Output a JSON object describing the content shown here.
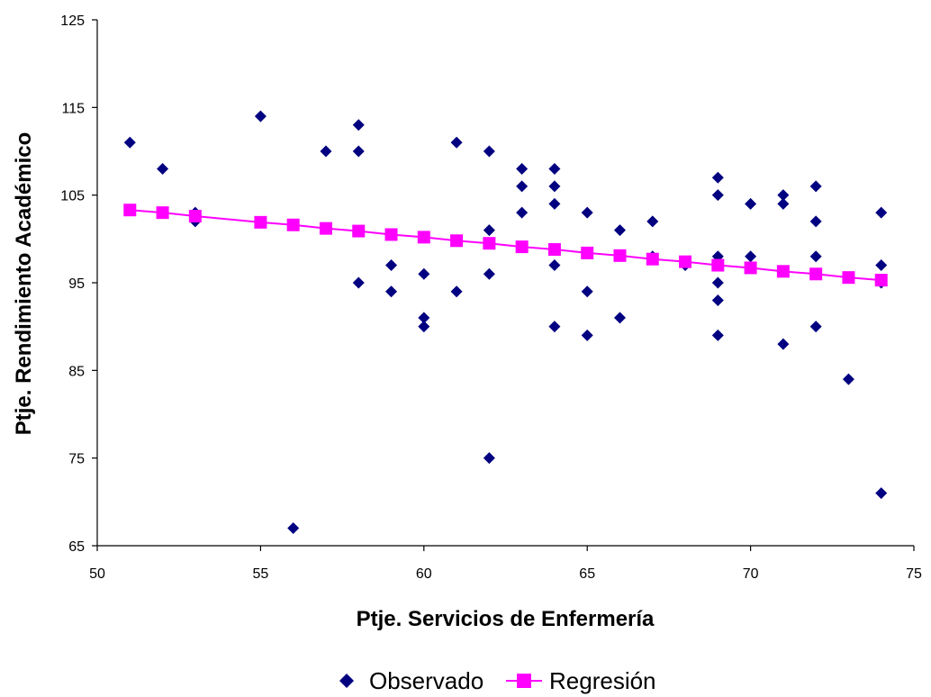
{
  "chart_data": {
    "type": "scatter",
    "title": "",
    "xlabel": "Ptje. Servicios de Enfermería",
    "ylabel": "Ptje. Rendimiento Académico",
    "xlim": [
      50,
      75
    ],
    "ylim": [
      65,
      125
    ],
    "x_ticks": [
      "50",
      "55",
      "60",
      "65",
      "70",
      "75"
    ],
    "y_ticks": [
      "65",
      "75",
      "85",
      "95",
      "105",
      "115",
      "125"
    ],
    "grid": false,
    "legend_position": "bottom",
    "colors": {
      "observed": "#000080",
      "regression": "#ff00ff"
    },
    "series": [
      {
        "name": "Observado",
        "marker": "diamond",
        "points": [
          [
            51,
            111
          ],
          [
            52,
            108
          ],
          [
            53,
            102
          ],
          [
            53,
            103
          ],
          [
            55,
            114
          ],
          [
            56,
            67
          ],
          [
            57,
            110
          ],
          [
            58,
            113
          ],
          [
            58,
            110
          ],
          [
            58,
            95
          ],
          [
            59,
            97
          ],
          [
            59,
            94
          ],
          [
            60,
            96
          ],
          [
            60,
            91
          ],
          [
            60,
            90
          ],
          [
            61,
            111
          ],
          [
            61,
            94
          ],
          [
            62,
            110
          ],
          [
            62,
            101
          ],
          [
            62,
            96
          ],
          [
            62,
            75
          ],
          [
            63,
            108
          ],
          [
            63,
            106
          ],
          [
            63,
            103
          ],
          [
            64,
            108
          ],
          [
            64,
            106
          ],
          [
            64,
            104
          ],
          [
            64,
            97
          ],
          [
            64,
            90
          ],
          [
            65,
            103
          ],
          [
            65,
            94
          ],
          [
            65,
            89
          ],
          [
            66,
            101
          ],
          [
            66,
            91
          ],
          [
            67,
            102
          ],
          [
            67,
            98
          ],
          [
            68,
            97
          ],
          [
            69,
            107
          ],
          [
            69,
            105
          ],
          [
            69,
            98
          ],
          [
            69,
            95
          ],
          [
            69,
            93
          ],
          [
            69,
            89
          ],
          [
            70,
            104
          ],
          [
            70,
            98
          ],
          [
            71,
            105
          ],
          [
            71,
            104
          ],
          [
            71,
            88
          ],
          [
            72,
            106
          ],
          [
            72,
            102
          ],
          [
            72,
            98
          ],
          [
            72,
            90
          ],
          [
            73,
            84
          ],
          [
            74,
            103
          ],
          [
            74,
            97
          ],
          [
            74,
            95
          ],
          [
            74,
            71
          ]
        ]
      },
      {
        "name": "Regresión",
        "marker": "square",
        "line": true,
        "points": [
          [
            51,
            103.3
          ],
          [
            52,
            103.0
          ],
          [
            53,
            102.6
          ],
          [
            55,
            101.9
          ],
          [
            56,
            101.6
          ],
          [
            57,
            101.2
          ],
          [
            58,
            100.9
          ],
          [
            59,
            100.5
          ],
          [
            60,
            100.2
          ],
          [
            61,
            99.8
          ],
          [
            62,
            99.5
          ],
          [
            63,
            99.1
          ],
          [
            64,
            98.8
          ],
          [
            65,
            98.4
          ],
          [
            66,
            98.1
          ],
          [
            67,
            97.7
          ],
          [
            68,
            97.4
          ],
          [
            69,
            97.0
          ],
          [
            70,
            96.7
          ],
          [
            71,
            96.3
          ],
          [
            72,
            96.0
          ],
          [
            73,
            95.6
          ],
          [
            74,
            95.3
          ]
        ]
      }
    ]
  }
}
